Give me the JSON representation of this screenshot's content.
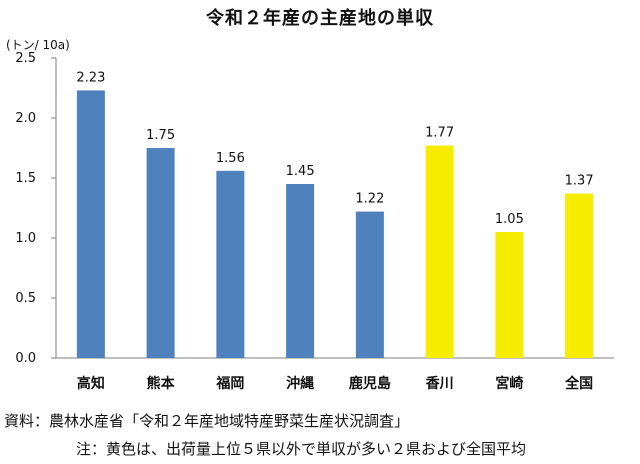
{
  "chart_data": {
    "type": "bar",
    "title": "令和２年産の主産地の単収",
    "ylabel": "(トン/ 10a)",
    "categories": [
      "高知",
      "熊本",
      "福岡",
      "沖縄",
      "鹿児島",
      "香川",
      "宮崎",
      "全国"
    ],
    "values": [
      2.23,
      1.75,
      1.56,
      1.45,
      1.22,
      1.77,
      1.05,
      1.37
    ],
    "value_labels": [
      "2.23",
      "1.75",
      "1.56",
      "1.45",
      "1.22",
      "1.77",
      "1.05",
      "1.37"
    ],
    "yticks": [
      "0.0",
      "0.5",
      "1.0",
      "1.5",
      "2.0",
      "2.5"
    ],
    "ylim": [
      0,
      2.5
    ],
    "grid": false,
    "colors": {
      "blue": "#4f81bd",
      "yellow": "#f5ec00"
    },
    "bar_colors": [
      "blue",
      "blue",
      "blue",
      "blue",
      "blue",
      "yellow",
      "yellow",
      "yellow"
    ]
  },
  "footer": {
    "source": "資料：農林水産省「令和２年産地域特産野菜生産状況調査」",
    "note": "注：黄色は、出荷量上位５県以外で単収が多い２県および全国平均"
  }
}
